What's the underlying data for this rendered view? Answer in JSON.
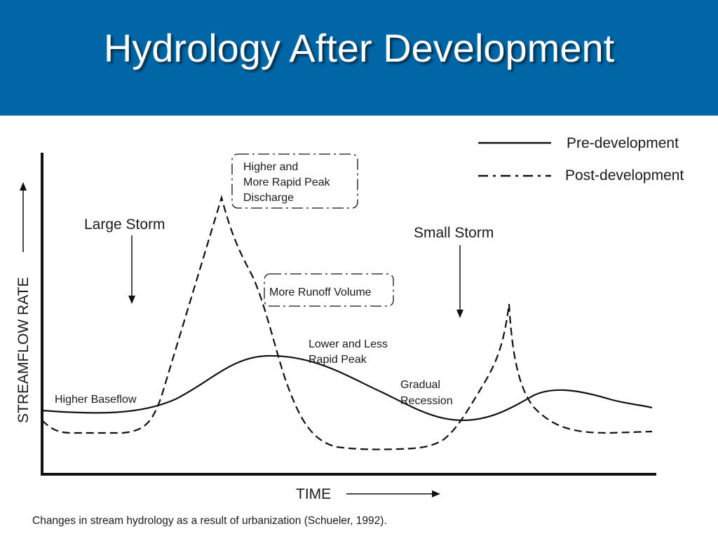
{
  "title": "Hydrology After Development",
  "legend": {
    "pre": "Pre-development",
    "post": "Post-development"
  },
  "axes": {
    "y_label": "STREAMFLOW RATE",
    "x_label": "TIME"
  },
  "annotations": {
    "large_storm": "Large Storm",
    "small_storm": "Small Storm",
    "peak_box": [
      "Higher and",
      "More Rapid Peak",
      "Discharge"
    ],
    "runoff_box": "More Runoff Volume",
    "lower_peak": [
      "Lower and Less",
      "Rapid Peak"
    ],
    "recession": [
      "Gradual",
      "Recession"
    ],
    "baseflow": "Higher Baseflow"
  },
  "caption": "Changes in stream hydrology as a result of urbanization (Schueler, 1992).",
  "colors": {
    "title_bar": "#0066a6",
    "title_text": "#ffffff",
    "ink": "#1a1a1a"
  }
}
